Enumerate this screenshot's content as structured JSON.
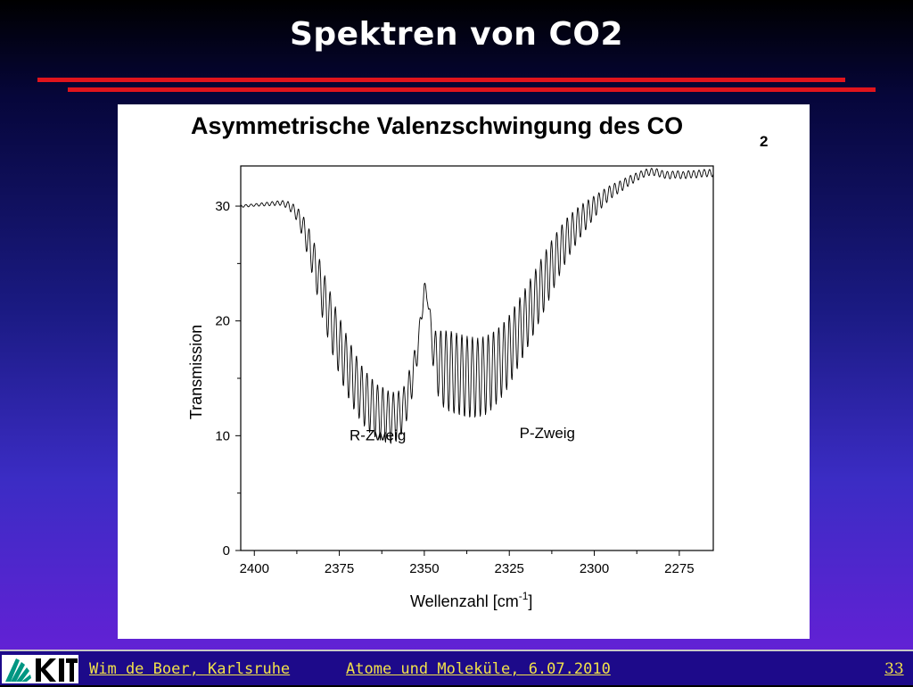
{
  "slide": {
    "title": "Spektren von CO2"
  },
  "footer": {
    "author": "Wim de Boer, Karlsruhe",
    "course": "Atome und Moleküle,  6.07.2010",
    "page": "33",
    "logo_text": "KIT"
  },
  "colors": {
    "accent_red": "#e0141c",
    "footer_text": "#f2e24a"
  },
  "chart_data": {
    "type": "line",
    "title": "Asymmetrische Valenzschwingung des CO",
    "title_subscript": "2",
    "xlabel": "Wellenzahl [cm",
    "xlabel_sup": "-1",
    "xlabel_end": "]",
    "ylabel": "Transmission",
    "xlim": [
      2404,
      2265
    ],
    "ylim": [
      0,
      33.5
    ],
    "x_reversed": true,
    "x_ticks": [
      "2400",
      "2375",
      "2350",
      "2325",
      "2300",
      "2275"
    ],
    "x_tick_values": [
      2400,
      2375,
      2350,
      2325,
      2300,
      2275
    ],
    "y_ticks": [
      "0",
      "10",
      "20",
      "30"
    ],
    "y_tick_values": [
      0,
      10,
      20,
      30
    ],
    "annotations": [
      {
        "text": "R-Zweig",
        "x": 2372,
        "y": 9.6
      },
      {
        "text": "P-Zweig",
        "x": 2322,
        "y": 9.8
      }
    ],
    "grid": false,
    "series": [
      {
        "x": [
          2404,
          2400,
          2396,
          2392,
          2390,
          2388,
          2386,
          2384,
          2382,
          2380,
          2378,
          2376,
          2374,
          2372,
          2370,
          2368,
          2366,
          2364,
          2362,
          2360,
          2358,
          2356,
          2354,
          2352,
          2350,
          2349,
          2348,
          2347,
          2346,
          2345,
          2344,
          2342,
          2340,
          2338,
          2336,
          2334,
          2332,
          2330,
          2328,
          2326,
          2324,
          2322,
          2320,
          2318,
          2316,
          2314,
          2312,
          2310,
          2308,
          2306,
          2304,
          2302,
          2300,
          2298,
          2296,
          2294,
          2292,
          2290,
          2288,
          2286,
          2284,
          2282,
          2280,
          2278,
          2276,
          2274,
          2272,
          2270,
          2268,
          2266,
          2265
        ],
        "baseline": [
          30.0,
          30.1,
          30.2,
          30.3,
          30.1,
          29.6,
          28.5,
          26.8,
          24.8,
          22.6,
          20.6,
          18.8,
          17.2,
          15.8,
          14.6,
          13.6,
          12.9,
          12.3,
          12.0,
          11.7,
          11.8,
          12.5,
          14.5,
          17.5,
          22.8,
          22.2,
          19.0,
          17.2,
          16.5,
          16.2,
          16.0,
          15.8,
          15.6,
          15.4,
          15.3,
          15.3,
          15.5,
          15.9,
          16.5,
          17.2,
          18.2,
          19.3,
          20.4,
          21.6,
          22.8,
          24.0,
          25.2,
          26.3,
          27.3,
          28.1,
          28.8,
          29.4,
          30.0,
          30.6,
          31.1,
          31.5,
          31.8,
          32.2,
          32.5,
          32.8,
          33.0,
          33.0,
          32.8,
          32.7,
          32.8,
          32.7,
          32.8,
          32.8,
          32.9,
          32.9,
          32.9
        ],
        "amplitude": [
          0.1,
          0.1,
          0.15,
          0.2,
          0.3,
          0.5,
          0.9,
          1.3,
          1.7,
          2.0,
          2.2,
          2.3,
          2.4,
          2.4,
          2.4,
          2.3,
          2.3,
          2.2,
          2.2,
          2.1,
          2.0,
          1.8,
          1.6,
          1.0,
          0.6,
          0.6,
          1.2,
          2.0,
          2.6,
          3.0,
          3.2,
          3.3,
          3.3,
          3.3,
          3.3,
          3.2,
          3.2,
          3.1,
          3.0,
          2.9,
          2.8,
          2.7,
          2.6,
          2.5,
          2.4,
          2.3,
          2.1,
          1.9,
          1.7,
          1.5,
          1.3,
          1.1,
          0.9,
          0.7,
          0.6,
          0.5,
          0.45,
          0.4,
          0.35,
          0.3,
          0.3,
          0.3,
          0.3,
          0.3,
          0.3,
          0.3,
          0.3,
          0.3,
          0.3,
          0.3,
          0.3
        ],
        "line_spacing_cm": 1.55
      }
    ]
  }
}
